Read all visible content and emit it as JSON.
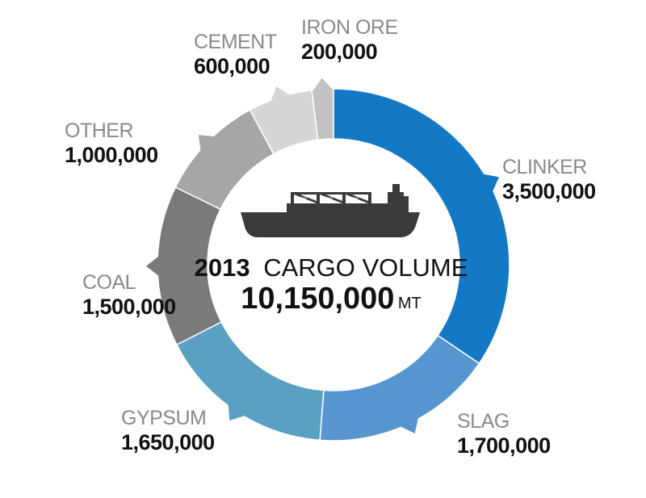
{
  "chart_data": {
    "type": "pie",
    "style": "donut",
    "center": {
      "year": "2013",
      "title": "CARGO VOLUME",
      "total": "10,150,000",
      "unit": "MT"
    },
    "slices": [
      {
        "label": "CLINKER",
        "value": 3500000,
        "value_text": "3,500,000",
        "color": "#1479c4"
      },
      {
        "label": "SLAG",
        "value": 1700000,
        "value_text": "1,700,000",
        "color": "#5695d0"
      },
      {
        "label": "GYPSUM",
        "value": 1650000,
        "value_text": "1,650,000",
        "color": "#5aa0c4"
      },
      {
        "label": "COAL",
        "value": 1500000,
        "value_text": "1,500,000",
        "color": "#7a7a7a"
      },
      {
        "label": "OTHER",
        "value": 1000000,
        "value_text": "1,000,000",
        "color": "#a6a6a6"
      },
      {
        "label": "CEMENT",
        "value": 600000,
        "value_text": "600,000",
        "color": "#d6d6d6"
      },
      {
        "label": "IRON ORE",
        "value": 200000,
        "value_text": "200,000",
        "color": "#c2c2c2"
      }
    ],
    "icon": "cargo-ship-icon"
  }
}
